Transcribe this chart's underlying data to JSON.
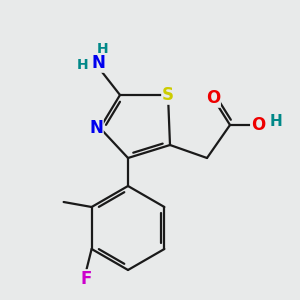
{
  "bg_color": "#e8eaea",
  "bond_color": "#1a1a1a",
  "atom_colors": {
    "S": "#cccc00",
    "N": "#0000ee",
    "O": "#ee0000",
    "F": "#cc00cc",
    "H": "#008888",
    "C": "#1a1a1a"
  },
  "lw": 1.6,
  "fs": 11
}
